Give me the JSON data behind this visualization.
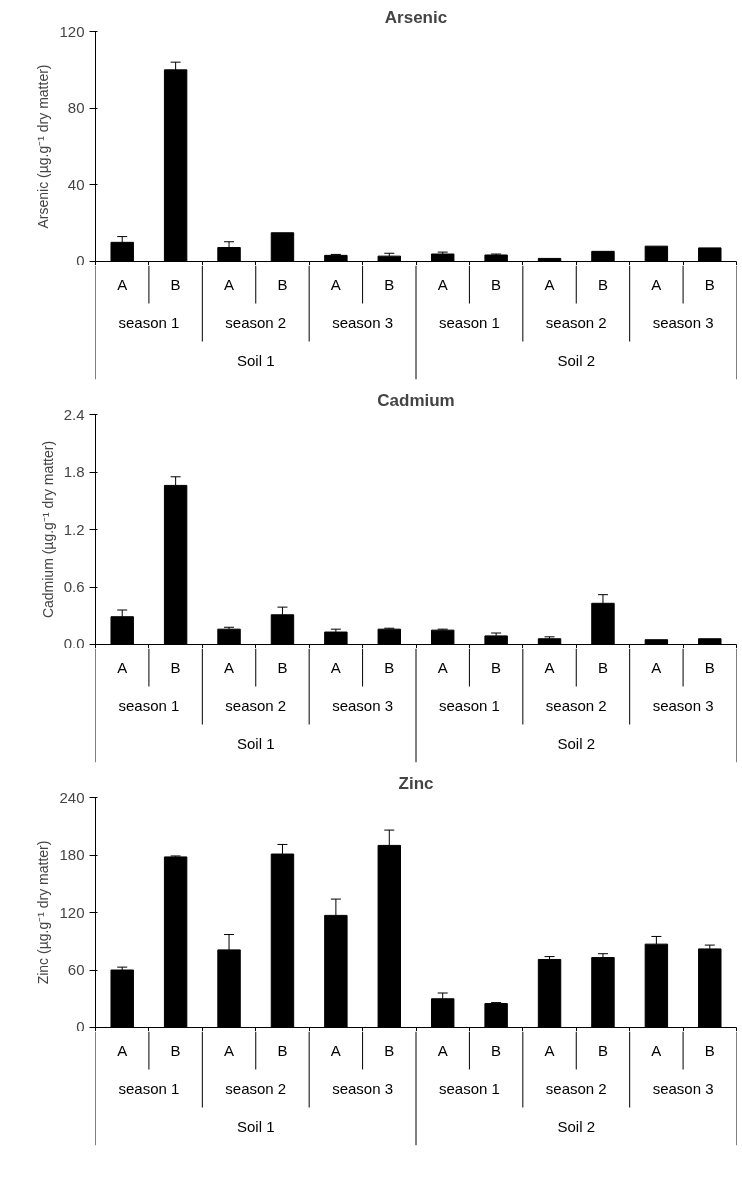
{
  "chart_data": [
    {
      "type": "bar",
      "title": "Arsenic",
      "ylabel": "Arsenic (µg.g⁻¹ dry matter)",
      "color": "#000000",
      "categories": [
        "A",
        "B",
        "A",
        "B",
        "A",
        "B",
        "A",
        "B",
        "A",
        "B",
        "A",
        "B"
      ],
      "values": [
        10,
        100,
        7.3,
        15,
        3.2,
        2.8,
        3.9,
        3.4,
        1.6,
        5.3,
        8,
        7.1
      ],
      "errors": [
        3,
        4,
        3,
        null,
        0.5,
        1.5,
        1,
        0.5,
        null,
        null,
        null,
        null
      ],
      "ylim": [
        0,
        120
      ],
      "yticks": [
        0,
        40,
        80,
        120
      ],
      "grid": false,
      "annotations": [
        "season 1",
        "season 2",
        "season 3",
        "season 1",
        "season 2",
        "season 3",
        "Soil 1",
        "Soil 2"
      ]
    },
    {
      "type": "bar",
      "title": "Cadmium",
      "ylabel": "Cadmium (µg.g⁻¹ dry matter)",
      "color": "#000000",
      "categories": [
        "A",
        "B",
        "A",
        "B",
        "A",
        "B",
        "A",
        "B",
        "A",
        "B",
        "A",
        "B"
      ],
      "values": [
        0.29,
        1.66,
        0.16,
        0.31,
        0.13,
        0.16,
        0.15,
        0.09,
        0.06,
        0.43,
        0.05,
        0.06
      ],
      "errors": [
        0.07,
        0.09,
        0.02,
        0.08,
        0.03,
        0.01,
        0.01,
        0.03,
        0.02,
        0.09,
        null,
        null
      ],
      "ylim": [
        0,
        2.4
      ],
      "yticks": [
        {
          "value": 0,
          "label": "0.0"
        },
        0.6,
        1.2,
        1.8,
        2.4
      ],
      "grid": false,
      "annotations": [
        "season 1",
        "season 2",
        "season 3",
        "season 1",
        "season 2",
        "season 3",
        "Soil 1",
        "Soil 2"
      ]
    },
    {
      "type": "bar",
      "title": "Zinc",
      "ylabel": "Zinc (µg.g⁻¹ dry matter)",
      "color": "#000000",
      "categories": [
        "A",
        "B",
        "A",
        "B",
        "A",
        "B",
        "A",
        "B",
        "A",
        "B",
        "A",
        "B"
      ],
      "values": [
        60,
        178,
        81,
        181,
        117,
        190,
        30,
        25,
        71,
        73,
        87,
        82
      ],
      "errors": [
        3,
        1,
        16,
        10,
        17,
        16,
        6,
        1,
        3,
        4,
        8,
        4
      ],
      "ylim": [
        0,
        240
      ],
      "yticks": [
        0,
        60,
        120,
        180,
        240
      ],
      "grid": false,
      "annotations": [
        "season 1",
        "season 2",
        "season 3",
        "season 1",
        "season 2",
        "season 3",
        "Soil 1",
        "Soil 2"
      ]
    }
  ]
}
